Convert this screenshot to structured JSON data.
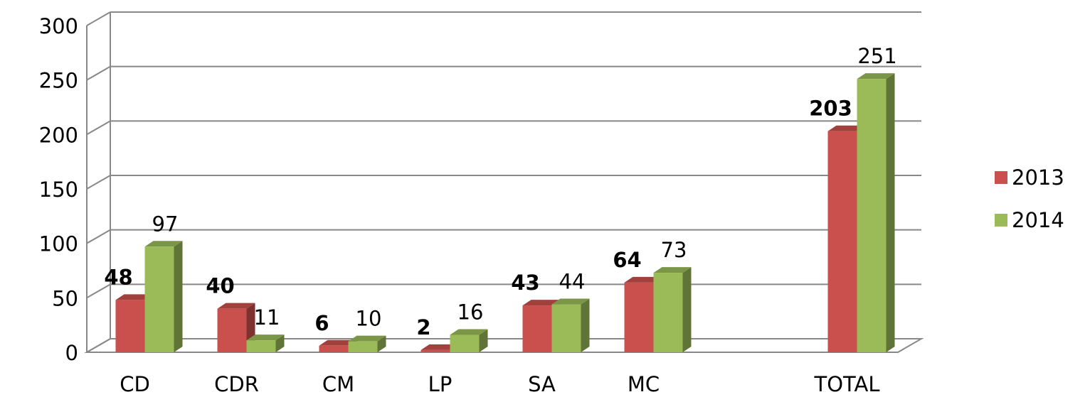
{
  "chart_data": {
    "type": "bar3d",
    "categories": [
      "CD",
      "CDR",
      "CM",
      "LP",
      "SA",
      "MC",
      null,
      "TOTAL"
    ],
    "series": [
      {
        "name": "2013",
        "color": "#c9504c",
        "values": [
          48,
          40,
          6,
          2,
          43,
          64,
          null,
          203
        ]
      },
      {
        "name": "2014",
        "color": "#9bbb59",
        "values": [
          97,
          11,
          10,
          16,
          44,
          73,
          null,
          251
        ]
      }
    ],
    "ylim": [
      0,
      300
    ],
    "yticks": [
      0,
      50,
      100,
      150,
      200,
      250,
      300
    ],
    "grid": true,
    "legend": "right"
  }
}
